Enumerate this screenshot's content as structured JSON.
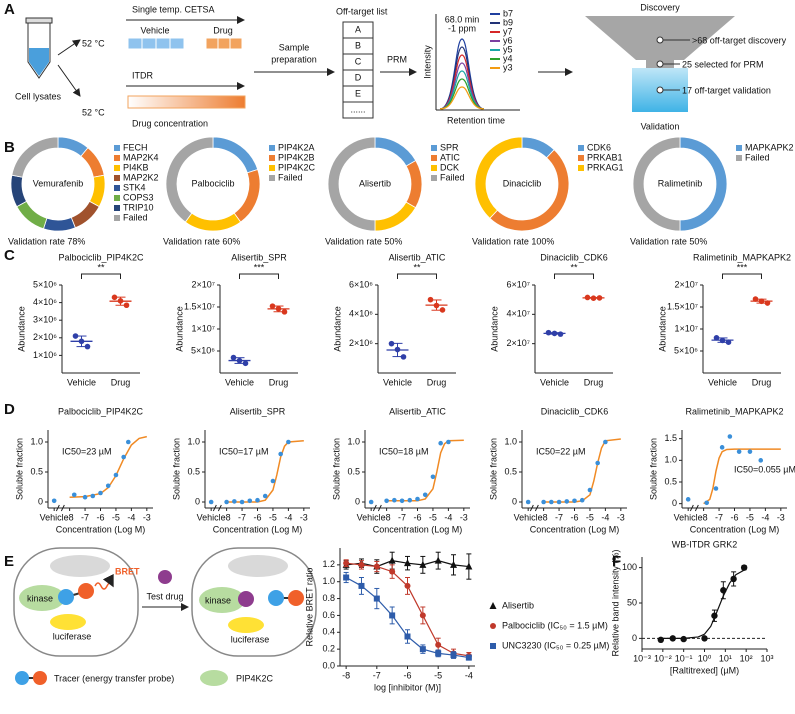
{
  "panel_labels": [
    "A",
    "B",
    "C",
    "D",
    "E",
    "F"
  ],
  "panel_a": {
    "cell_lysates": "Cell lysates",
    "temp_top": "52 °C",
    "temp_bottom": "52 °C",
    "cetsa": "Single temp. CETSA",
    "vehicle": "Vehicle",
    "drug": "Drug",
    "itdr": "ITDR",
    "drug_conc": "Drug concentration",
    "sample_prep": [
      "Sample",
      "preparation"
    ],
    "offtarget_list": "Off-target list",
    "list_items": [
      "A",
      "B",
      "C",
      "D",
      "E",
      "......"
    ],
    "prm": "PRM",
    "intensity": "Intensity",
    "retention_time": "Retention time",
    "peak_label": [
      "68.0 min",
      "-1 ppm"
    ],
    "ions": [
      "b7",
      "b9",
      "y7",
      "y6",
      "y5",
      "y4",
      "y3"
    ],
    "ion_colors": [
      "#1f3f9f",
      "#223377",
      "#d62728",
      "#7b3fa0",
      "#1aa6a6",
      "#2ca02c",
      "#f39c12"
    ],
    "discovery": "Discovery",
    "funnel": [
      ">68 off-target discovery",
      "25 selected for PRM",
      "17 off-target validation"
    ],
    "validation": "Validation"
  },
  "panel_e": {
    "bret": "BRET",
    "kinase_1": "kinase",
    "luciferase_1": "luciferase",
    "test_drug": "Test drug",
    "kinase_2": "kinase",
    "luciferase_2": "luciferase",
    "tracer": "Tracer (energy transfer probe)",
    "pip4k2c": "PIP4K2C"
  },
  "chart_data": [
    {
      "type": "donut",
      "title": "Vemurafenib",
      "categories": [
        "FECH",
        "MAP2K4",
        "PI4KB",
        "MAP2K2",
        "STK4",
        "COPS3",
        "TRIP10",
        "Failed"
      ],
      "values": [
        11,
        11,
        11,
        11,
        11,
        12,
        11,
        22
      ],
      "colors": [
        "#5b9bd5",
        "#ed7d31",
        "#ffc000",
        "#a0522d",
        "#2f5597",
        "#70ad47",
        "#264478",
        "#a5a5a5"
      ],
      "note": "Validation rate 78%"
    },
    {
      "type": "donut",
      "title": "Palbociclib",
      "categories": [
        "PIP4K2A",
        "PIP4K2B",
        "PIP4K2C",
        "Failed"
      ],
      "values": [
        20,
        20,
        20,
        40
      ],
      "colors": [
        "#5b9bd5",
        "#ed7d31",
        "#ffc000",
        "#a5a5a5"
      ],
      "note": "Validation rate 60%"
    },
    {
      "type": "donut",
      "title": "Alisertib",
      "categories": [
        "SPR",
        "ATIC",
        "DCK",
        "Failed"
      ],
      "values": [
        16.7,
        16.7,
        16.6,
        50
      ],
      "colors": [
        "#5b9bd5",
        "#ed7d31",
        "#ffc000",
        "#a5a5a5"
      ],
      "note": "Validation rate 50%"
    },
    {
      "type": "donut",
      "title": "Dinaciclib",
      "categories": [
        "CDK6",
        "PRKAB1",
        "PRKAG1"
      ],
      "values": [
        12,
        50,
        38
      ],
      "colors": [
        "#5b9bd5",
        "#ed7d31",
        "#ffc000"
      ],
      "note": "Validation rate 100%"
    },
    {
      "type": "donut",
      "title": "Ralimetinib",
      "categories": [
        "MAPKAPK2",
        "Failed"
      ],
      "values": [
        50,
        50
      ],
      "colors": [
        "#5b9bd5",
        "#a5a5a5"
      ],
      "note": "Validation rate 50%"
    },
    {
      "type": "dot",
      "title": "Palbociclib_PIP4K2C",
      "ylabel": "Abundance",
      "significance": "**",
      "categories": [
        "Vehicle",
        "Drug"
      ],
      "values": [
        [
          2100000,
          1800000,
          1500000
        ],
        [
          4300000,
          4100000,
          3850000
        ]
      ],
      "means": [
        1800000,
        4080000
      ],
      "errors": [
        300000,
        230000
      ],
      "colors": [
        "#2f3fa8",
        "#d9381e"
      ],
      "ylim": [
        0,
        5000000
      ],
      "yticks": [
        {
          "value": 1000000,
          "label": "1×10⁶"
        },
        {
          "value": 2000000,
          "label": "2×10⁶"
        },
        {
          "value": 3000000,
          "label": "3×10⁶"
        },
        {
          "value": 4000000,
          "label": "4×10⁶"
        },
        {
          "value": 5000000,
          "label": "5×10⁶"
        }
      ]
    },
    {
      "type": "dot",
      "title": "Alisertib_SPR",
      "ylabel": "Abundance",
      "significance": "***",
      "categories": [
        "Vehicle",
        "Drug"
      ],
      "values": [
        [
          3500000,
          2800000,
          2200000
        ],
        [
          15200000,
          14600000,
          13900000
        ]
      ],
      "means": [
        2830000,
        14570000
      ],
      "errors": [
        650000,
        650000
      ],
      "colors": [
        "#2f3fa8",
        "#d9381e"
      ],
      "ylim": [
        0,
        20000000
      ],
      "yticks": [
        {
          "value": 5000000,
          "label": "5×10⁶"
        },
        {
          "value": 10000000,
          "label": "1×10⁷"
        },
        {
          "value": 15000000,
          "label": "1.5×10⁷"
        },
        {
          "value": 20000000,
          "label": "2×10⁷"
        }
      ]
    },
    {
      "type": "dot",
      "title": "Alisertib_ATIC",
      "ylabel": "Abundance",
      "significance": "**",
      "categories": [
        "Vehicle",
        "Drug"
      ],
      "values": [
        [
          2000000,
          1600000,
          1100000
        ],
        [
          5000000,
          4600000,
          4300000
        ]
      ],
      "means": [
        1570000,
        4630000
      ],
      "errors": [
        450000,
        350000
      ],
      "colors": [
        "#2f3fa8",
        "#d9381e"
      ],
      "ylim": [
        0,
        6000000
      ],
      "yticks": [
        {
          "value": 2000000,
          "label": "2×10⁶"
        },
        {
          "value": 4000000,
          "label": "4×10⁶"
        },
        {
          "value": 6000000,
          "label": "6×10⁶"
        }
      ]
    },
    {
      "type": "dot",
      "title": "Dinaciclib_CDK6",
      "ylabel": "Abundance",
      "significance": "**",
      "categories": [
        "Vehicle",
        "Drug"
      ],
      "values": [
        [
          27500000,
          27000000,
          26500000
        ],
        [
          51500000,
          51000000,
          51200000
        ]
      ],
      "means": [
        27000000,
        51230000
      ],
      "errors": [
        500000,
        250000
      ],
      "colors": [
        "#2f3fa8",
        "#d9381e"
      ],
      "ylim": [
        0,
        60000000
      ],
      "yticks": [
        {
          "value": 20000000,
          "label": "2×10⁷"
        },
        {
          "value": 40000000,
          "label": "4×10⁷"
        },
        {
          "value": 60000000,
          "label": "6×10⁷"
        }
      ]
    },
    {
      "type": "dot",
      "title": "Ralimetinib_MAPKAPK2",
      "ylabel": "Abundance",
      "significance": "***",
      "categories": [
        "Vehicle",
        "Drug"
      ],
      "values": [
        [
          8000000,
          7400000,
          7000000
        ],
        [
          16800000,
          16300000,
          15900000
        ]
      ],
      "means": [
        7470000,
        16330000
      ],
      "errors": [
        500000,
        450000
      ],
      "colors": [
        "#2f3fa8",
        "#d9381e"
      ],
      "ylim": [
        0,
        20000000
      ],
      "yticks": [
        {
          "value": 5000000,
          "label": "5×10⁶"
        },
        {
          "value": 10000000,
          "label": "1×10⁷"
        },
        {
          "value": 15000000,
          "label": "1.5×10⁷"
        },
        {
          "value": 20000000,
          "label": "2×10⁷"
        }
      ]
    },
    {
      "type": "dose",
      "title": "Palbociclib_PIP4K2C",
      "annotation": "IC50=23 µM",
      "xlabel": "Concentration (Log M)",
      "ylabel": "Soluble fraction",
      "point_color": "#3a8fd9",
      "fit_color": "#f08a24",
      "points": {
        "x": [
          -9,
          -7.7,
          -7,
          -6.5,
          -6,
          -5.5,
          -5,
          -4.5,
          -4.2
        ],
        "values": [
          0.02,
          0.12,
          0.08,
          0.1,
          0.15,
          0.27,
          0.45,
          0.75,
          1.0
        ]
      },
      "fit": {
        "x": [
          -8,
          -7,
          -6,
          -5.5,
          -5,
          -4.5,
          -4,
          -3.5,
          -3
        ],
        "values": [
          0.08,
          0.09,
          0.14,
          0.24,
          0.44,
          0.72,
          0.95,
          1.06,
          1.09
        ]
      },
      "xlim": [
        -9.4,
        -2.6
      ],
      "xticks": [
        {
          "value": -9,
          "label": "Vehicle"
        },
        -8,
        -7,
        -6,
        -5,
        -4,
        -3
      ],
      "ylim": [
        -0.1,
        1.2
      ],
      "yticks": [
        0,
        0.5,
        {
          "value": 1,
          "label": "1.0"
        }
      ]
    },
    {
      "type": "dose",
      "title": "Alisertib_SPR",
      "annotation": "IC50=17 µM",
      "xlabel": "Concentration (Log M)",
      "ylabel": "Soluble fraction",
      "point_color": "#3a8fd9",
      "fit_color": "#f08a24",
      "points": {
        "x": [
          -9,
          -8,
          -7.5,
          -7,
          -6.5,
          -6,
          -5.5,
          -5,
          -4.5,
          -4
        ],
        "values": [
          0,
          0,
          0.01,
          0,
          0.02,
          0.03,
          0.1,
          0.35,
          0.8,
          1.0
        ]
      },
      "fit": {
        "x": [
          -8,
          -6,
          -5.5,
          -5,
          -4.75,
          -4.5,
          -4.25,
          -4,
          -3
        ],
        "values": [
          0,
          0,
          0.03,
          0.2,
          0.45,
          0.75,
          0.93,
          1.0,
          1.02
        ]
      },
      "xlim": [
        -9.4,
        -2.6
      ],
      "xticks": [
        {
          "value": -9,
          "label": "Vehicle"
        },
        -8,
        -7,
        -6,
        -5,
        -4,
        -3
      ],
      "ylim": [
        -0.1,
        1.2
      ],
      "yticks": [
        0,
        0.5,
        {
          "value": 1,
          "label": "1.0"
        }
      ]
    },
    {
      "type": "dose",
      "title": "Alisertib_ATIC",
      "annotation": "IC50=18 µM",
      "xlabel": "Concentration (Log M)",
      "ylabel": "Soluble fraction",
      "point_color": "#3a8fd9",
      "fit_color": "#f08a24",
      "points": {
        "x": [
          -9,
          -8,
          -7.5,
          -7,
          -6.5,
          -6,
          -5.5,
          -5,
          -4.5,
          -4
        ],
        "values": [
          0,
          0.02,
          0.03,
          0.02,
          0.03,
          0.05,
          0.12,
          0.42,
          0.98,
          1.0
        ]
      },
      "fit": {
        "x": [
          -8,
          -6,
          -5.5,
          -5,
          -4.75,
          -4.5,
          -4.25,
          -4,
          -3
        ],
        "values": [
          0.02,
          0.02,
          0.05,
          0.22,
          0.5,
          0.82,
          0.97,
          1.02,
          1.03
        ]
      },
      "xlim": [
        -9.4,
        -2.6
      ],
      "xticks": [
        {
          "value": -9,
          "label": "Vehicle"
        },
        -8,
        -7,
        -6,
        -5,
        -4,
        -3
      ],
      "ylim": [
        -0.1,
        1.2
      ],
      "yticks": [
        0,
        0.5,
        {
          "value": 1,
          "label": "1.0"
        }
      ]
    },
    {
      "type": "dose",
      "title": "Dinaciclib_CDK6",
      "annotation": "IC50=22 µM",
      "xlabel": "Concentration (Log M)",
      "ylabel": "Soluble fraction",
      "point_color": "#3a8fd9",
      "fit_color": "#f08a24",
      "points": {
        "x": [
          -9,
          -8,
          -7.5,
          -7,
          -6.5,
          -6,
          -5.5,
          -5,
          -4.5,
          -4
        ],
        "values": [
          0,
          0,
          0,
          0,
          0.01,
          0.02,
          0.03,
          0.2,
          0.65,
          1.0
        ]
      },
      "fit": {
        "x": [
          -8,
          -6,
          -5.5,
          -5,
          -4.75,
          -4.5,
          -4.25,
          -4,
          -3
        ],
        "values": [
          0,
          0,
          0.02,
          0.12,
          0.35,
          0.65,
          0.9,
          1.02,
          1.05
        ]
      },
      "xlim": [
        -9.4,
        -2.6
      ],
      "xticks": [
        {
          "value": -9,
          "label": "Vehicle"
        },
        -8,
        -7,
        -6,
        -5,
        -4,
        -3
      ],
      "ylim": [
        -0.1,
        1.2
      ],
      "yticks": [
        0,
        0.5,
        {
          "value": 1,
          "label": "1.0"
        }
      ]
    },
    {
      "type": "dose",
      "title": "Ralimetinib_MAPKAPK2",
      "annotation": "IC50=0.055 µM",
      "xlabel": "Concentration (Log M)",
      "ylabel": "Soluble fraction",
      "point_color": "#3a8fd9",
      "fit_color": "#f08a24",
      "points": {
        "x": [
          -9,
          -7.8,
          -7.2,
          -6.8,
          -6.3,
          -5.7,
          -5,
          -4.3
        ],
        "values": [
          0.1,
          0.02,
          0.35,
          1.3,
          1.55,
          1.2,
          1.2,
          1.0
        ]
      },
      "fit": {
        "x": [
          -8,
          -7.6,
          -7.4,
          -7.2,
          -7,
          -6.8,
          -6.5,
          -6,
          -3
        ],
        "values": [
          0,
          0.1,
          0.35,
          0.75,
          1.05,
          1.2,
          1.25,
          1.26,
          1.26
        ]
      },
      "xlim": [
        -9.4,
        -2.6
      ],
      "xticks": [
        {
          "value": -9,
          "label": "Vehicle"
        },
        -8,
        -7,
        -6,
        -5,
        -4,
        -3
      ],
      "ylim": [
        -0.1,
        1.7
      ],
      "yticks": [
        0,
        0.5,
        {
          "value": 1,
          "label": "1.0"
        },
        1.5
      ]
    },
    {
      "type": "bret",
      "xlabel": "log [inhibitor (M)]",
      "ylabel": "Relative BRET ratio",
      "x": [
        -8,
        -7.5,
        -7,
        -6.5,
        -6,
        -5.5,
        -5,
        -4.5,
        -4
      ],
      "series": [
        {
          "name": "Alisertib",
          "color": "#111111",
          "marker": "triangle",
          "values": [
            1.2,
            1.22,
            1.18,
            1.25,
            1.22,
            1.2,
            1.25,
            1.2,
            1.18
          ],
          "errors": [
            0.05,
            0.05,
            0.08,
            0.1,
            0.08,
            0.1,
            0.1,
            0.12,
            0.15
          ]
        },
        {
          "name": "Palbociclib (IC₅₀ = 1.5 µM)",
          "color": "#c0392b",
          "marker": "circle",
          "values": [
            1.22,
            1.2,
            1.18,
            1.12,
            0.95,
            0.6,
            0.25,
            0.15,
            0.12
          ],
          "errors": [
            0.04,
            0.05,
            0.06,
            0.08,
            0.1,
            0.1,
            0.08,
            0.05,
            0.04
          ]
        },
        {
          "name": "UNC3230 (IC₅₀ = 0.25 µM)",
          "color": "#2e5caa",
          "marker": "square",
          "values": [
            1.05,
            0.95,
            0.8,
            0.6,
            0.35,
            0.2,
            0.15,
            0.13,
            0.1
          ],
          "errors": [
            0.06,
            0.1,
            0.12,
            0.1,
            0.08,
            0.05,
            0.04,
            0.04,
            0.03
          ]
        }
      ],
      "xlim": [
        -8.2,
        -3.8
      ],
      "xticks": [
        -8,
        -7,
        -6,
        -5,
        -4
      ],
      "ylim": [
        0,
        1.4
      ],
      "yticks": [
        {
          "value": 0,
          "label": "0.0"
        },
        0.2,
        0.4,
        0.6,
        0.8,
        {
          "value": 1,
          "label": "1.0"
        },
        1.2
      ]
    },
    {
      "type": "itdr",
      "title": "WB-ITDR GRK2",
      "xlabel": "[Raltitrexed] (µM)",
      "ylabel": "Relative band intensity (%)",
      "color": "#111111",
      "xlog": true,
      "points": {
        "x": [
          0.008,
          0.03,
          0.1,
          1,
          3,
          8,
          25,
          80
        ],
        "values": [
          -2,
          0,
          -1,
          0,
          32,
          68,
          84,
          100
        ],
        "errors": [
          1,
          1,
          2,
          2,
          8,
          12,
          10,
          3
        ]
      },
      "fit": {
        "x": [
          0.01,
          0.1,
          0.5,
          1,
          2,
          4,
          8,
          16,
          32,
          100
        ],
        "values": [
          0,
          0,
          2,
          6,
          17,
          38,
          60,
          78,
          90,
          98
        ]
      },
      "xlim": [
        0.001,
        1000
      ],
      "xticks": [
        {
          "value": 0.001,
          "label": "10⁻³"
        },
        {
          "value": 0.01,
          "label": "10⁻²"
        },
        {
          "value": 0.1,
          "label": "10⁻¹"
        },
        {
          "value": 1,
          "label": "10⁰"
        },
        {
          "value": 10,
          "label": "10¹"
        },
        {
          "value": 100,
          "label": "10²"
        },
        {
          "value": 1000,
          "label": "10³"
        }
      ],
      "ylim": [
        -15,
        115
      ],
      "yticks": [
        0,
        50,
        100
      ]
    }
  ]
}
